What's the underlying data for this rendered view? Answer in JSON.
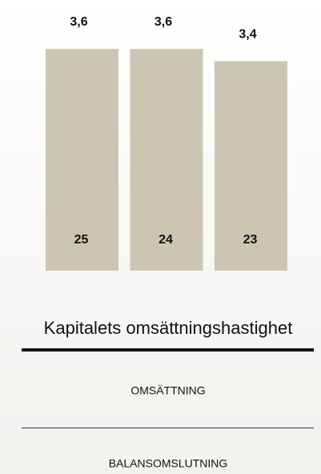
{
  "chart_data": {
    "type": "bar",
    "title": "Kapitalets omsättningshastighet",
    "categories": [
      "25",
      "24",
      "23"
    ],
    "values": [
      3.6,
      3.6,
      3.4
    ],
    "value_labels": [
      "3,6",
      "3,6",
      "3,4"
    ],
    "color": "#cdc5b4",
    "numerator": "OMSÄTTNING",
    "denominator": "BALANSOMSLUTNING"
  }
}
